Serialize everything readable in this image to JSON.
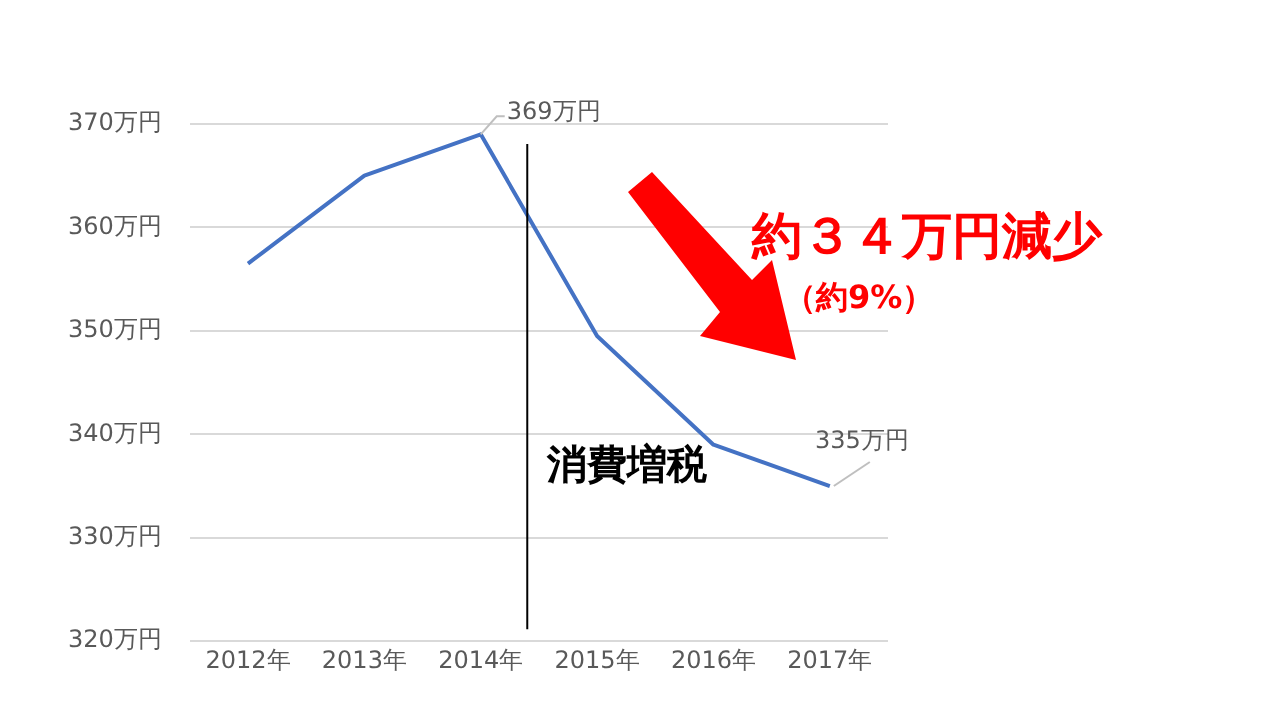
{
  "chart_data": {
    "type": "line",
    "x": [
      2012,
      2013,
      2014,
      2015,
      2016,
      2017
    ],
    "series": [
      {
        "color": "#4472c4",
        "values": [
          356.5,
          365,
          369,
          349.5,
          339,
          335
        ]
      }
    ],
    "xlim": [
      2011.5,
      2017.5
    ],
    "xticks": [
      {
        "value": 2012,
        "label": "2012年"
      },
      {
        "value": 2013,
        "label": "2013年"
      },
      {
        "value": 2014,
        "label": "2014年"
      },
      {
        "value": 2015,
        "label": "2015年"
      },
      {
        "value": 2016,
        "label": "2016年"
      },
      {
        "value": 2017,
        "label": "2017年"
      }
    ],
    "ylim": [
      320,
      370
    ],
    "yticks": [
      {
        "value": 320,
        "label": "320万円"
      },
      {
        "value": 330,
        "label": "330万円"
      },
      {
        "value": 340,
        "label": "340万円"
      },
      {
        "value": 350,
        "label": "350万円"
      },
      {
        "value": 360,
        "label": "360万円"
      },
      {
        "value": 370,
        "label": "370万円"
      }
    ],
    "grid": "y",
    "legend": false,
    "marker": "none",
    "line_style": "solid",
    "ref_lines": [
      {
        "axis": "x",
        "value": 2014.4,
        "label": "消費増税",
        "color": "#000000"
      }
    ],
    "annotations": [
      {
        "text": "369万円",
        "x": 2014,
        "y": 369
      },
      {
        "text": "335万円",
        "x": 2017,
        "y": 335
      },
      "約３４万円減少",
      "（約9%）"
    ]
  }
}
